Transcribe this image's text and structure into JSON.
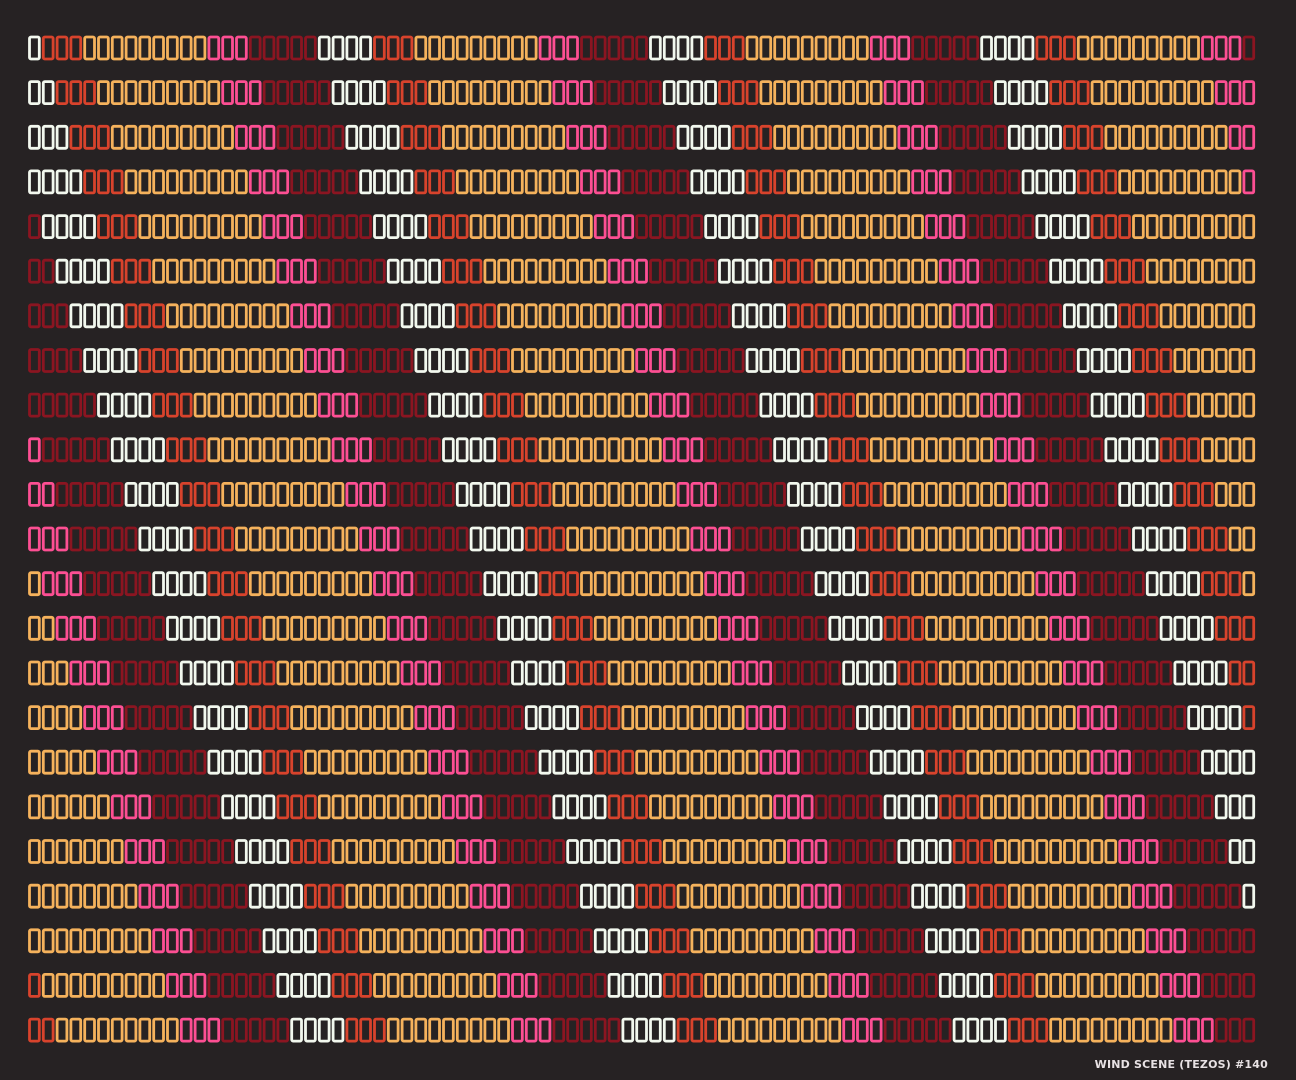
{
  "artwork": {
    "caption": "WIND SCENE (TEZOS) #140",
    "background": "#262223",
    "palette": {
      "white": "#f2f8ee",
      "red": "#d8432c",
      "orange": "#f5b25c",
      "pink": "#fd4f93",
      "dark_red": "#8b1521"
    },
    "band_sequence": [
      {
        "color": "white",
        "count": 4
      },
      {
        "color": "red",
        "count": 3
      },
      {
        "color": "orange",
        "count": 9
      },
      {
        "color": "pink",
        "count": 3
      },
      {
        "color": "dark_red",
        "count": 5
      }
    ],
    "rows": 23,
    "shift_per_row": 1
  }
}
